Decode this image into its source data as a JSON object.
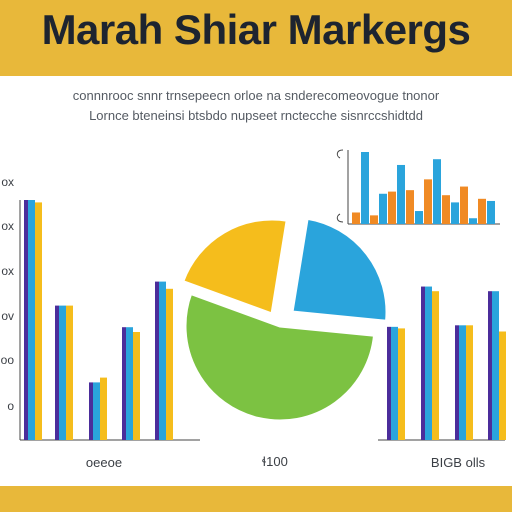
{
  "header": {
    "title": "Marah Shiar Markergs"
  },
  "subtitle": {
    "line1": "connnrooc snnr  trnsepeecn  orloe  na  snderecomeovogue  tnonor",
    "line2": "Lornce bteneinsi  btsbdo  nupseet  rnctecche  sisnrccshidtdd"
  },
  "colors": {
    "blue": "#2aa4dc",
    "yellow": "#f5bd1c",
    "purple": "#4b2d9b",
    "orange": "#f08a24",
    "green": "#7cc242",
    "banner": "#e8b83a"
  },
  "chart_data": [
    {
      "type": "bar",
      "ticks": [
        "ox",
        "ox",
        "ox",
        "ov",
        "oo",
        "o"
      ],
      "caption": "oeeoe",
      "ylim": [
        0,
        100
      ],
      "groups": [
        {
          "a": 100,
          "b": 99
        },
        {
          "a": 56,
          "b": 56
        },
        {
          "a": 24,
          "b": 26
        },
        {
          "a": 47,
          "b": 45
        },
        {
          "a": 66,
          "b": 63
        }
      ]
    },
    {
      "type": "pie",
      "caption": "ɬ100",
      "slices": [
        {
          "label": "yellow",
          "value": 22
        },
        {
          "label": "blue",
          "value": 24
        },
        {
          "label": "green",
          "value": 54
        }
      ]
    },
    {
      "type": "bar",
      "tick": "o",
      "ylim": [
        0,
        100
      ],
      "values": [
        16,
        100,
        12,
        42,
        45,
        82,
        47,
        18,
        62,
        90,
        40,
        30,
        52,
        8,
        35,
        32
      ]
    },
    {
      "type": "bar",
      "caption": "BIGB olls",
      "ylim": [
        0,
        100
      ],
      "groups": [
        {
          "a": 73,
          "b": 72
        },
        {
          "a": 99,
          "b": 96
        },
        {
          "a": 74,
          "b": 74
        },
        {
          "a": 96,
          "b": 70
        }
      ]
    }
  ]
}
